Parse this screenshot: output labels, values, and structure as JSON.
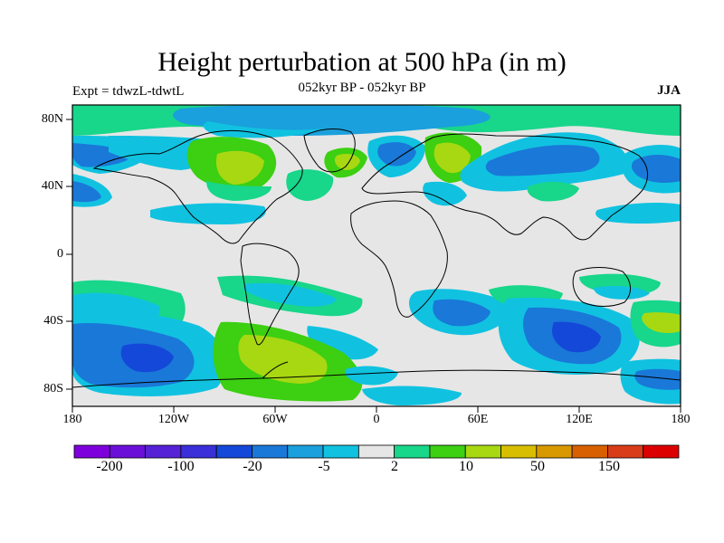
{
  "header": {
    "title": "Height perturbation at 500 hPa (in m)",
    "subtitle": "052kyr BP - 052kyr BP",
    "experiment": "Expt = tdwzL-tdwtL",
    "season": "JJA"
  },
  "map": {
    "projection": "cylindrical equidistant",
    "lon_range": [
      -180,
      180
    ],
    "lat_range": [
      -90,
      90
    ],
    "lat_ticks": [
      "80N",
      "40N",
      "0",
      "40S",
      "80S"
    ],
    "lon_ticks": [
      "180",
      "120W",
      "60W",
      "0",
      "60E",
      "120E",
      "180"
    ]
  },
  "colorbar": {
    "colors": [
      "#7d00dc",
      "#6a0fd8",
      "#5522d6",
      "#3a2fd8",
      "#1448d8",
      "#1a78d8",
      "#1aa0dc",
      "#10c2e0",
      "#e6e6e6",
      "#18d68a",
      "#3ccf12",
      "#a8d812",
      "#d8be00",
      "#d89800",
      "#d86000",
      "#d83c18",
      "#dc0000"
    ],
    "labels": [
      "-200",
      "-100",
      "-20",
      "-5",
      "2",
      "10",
      "50",
      "150"
    ]
  },
  "fields": {
    "background_color": "#e6e6e6"
  }
}
